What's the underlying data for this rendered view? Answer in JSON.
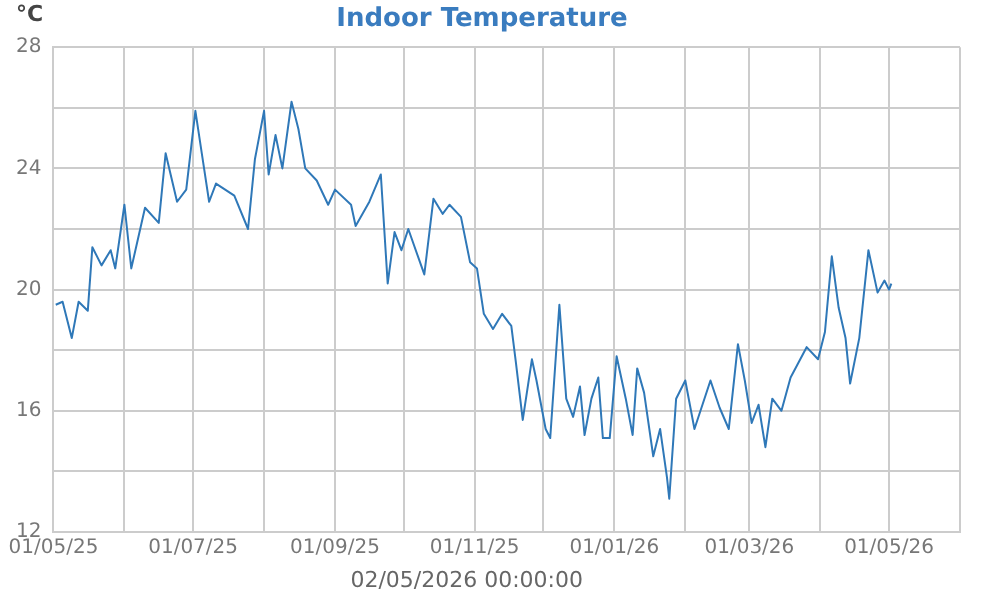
{
  "chart_data": {
    "type": "line",
    "title": "Indoor Temperature",
    "ylabel": "°C",
    "annotations": [
      "02/05/2026 00:00:00"
    ],
    "x": [
      "2025-05-02",
      "2025-05-05",
      "2025-05-09",
      "2025-05-12",
      "2025-05-16",
      "2025-05-18",
      "2025-05-22",
      "2025-05-26",
      "2025-05-28",
      "2025-06-01",
      "2025-06-04",
      "2025-06-10",
      "2025-06-16",
      "2025-06-19",
      "2025-06-24",
      "2025-06-28",
      "2025-07-02",
      "2025-07-05",
      "2025-07-08",
      "2025-07-11",
      "2025-07-19",
      "2025-07-25",
      "2025-07-28",
      "2025-08-01",
      "2025-08-03",
      "2025-08-06",
      "2025-08-09",
      "2025-08-13",
      "2025-08-16",
      "2025-08-19",
      "2025-08-24",
      "2025-08-29",
      "2025-09-01",
      "2025-09-08",
      "2025-09-10",
      "2025-09-16",
      "2025-09-21",
      "2025-09-24",
      "2025-09-27",
      "2025-09-30",
      "2025-10-03",
      "2025-10-10",
      "2025-10-14",
      "2025-10-18",
      "2025-10-21",
      "2025-10-26",
      "2025-10-30",
      "2025-11-02",
      "2025-11-05",
      "2025-11-09",
      "2025-11-13",
      "2025-11-17",
      "2025-11-19",
      "2025-11-22",
      "2025-11-26",
      "2025-11-28",
      "2025-12-02",
      "2025-12-04",
      "2025-12-08",
      "2025-12-11",
      "2025-12-14",
      "2025-12-17",
      "2025-12-19",
      "2025-12-22",
      "2025-12-25",
      "2025-12-27",
      "2025-12-30",
      "2026-01-02",
      "2026-01-06",
      "2026-01-09",
      "2026-01-11",
      "2026-01-14",
      "2026-01-18",
      "2026-01-21",
      "2026-01-24",
      "2026-01-25",
      "2026-01-28",
      "2026-02-01",
      "2026-02-05",
      "2026-02-12",
      "2026-02-16",
      "2026-02-20",
      "2026-02-24",
      "2026-02-27",
      "2026-03-02",
      "2026-03-05",
      "2026-03-08",
      "2026-03-11",
      "2026-03-15",
      "2026-03-19",
      "2026-03-26",
      "2026-03-31",
      "2026-04-03",
      "2026-04-06",
      "2026-04-09",
      "2026-04-12",
      "2026-04-14",
      "2026-04-18",
      "2026-04-22",
      "2026-04-26",
      "2026-04-29",
      "2026-05-01",
      "2026-05-02"
    ],
    "series": [
      {
        "color": "#2f78b8",
        "values": [
          19.5,
          19.6,
          18.4,
          19.6,
          19.3,
          21.4,
          20.8,
          21.3,
          20.7,
          22.8,
          20.7,
          22.7,
          22.2,
          24.5,
          22.9,
          23.3,
          25.9,
          24.4,
          22.9,
          23.5,
          23.1,
          22.0,
          24.3,
          25.9,
          23.8,
          25.1,
          24.0,
          26.2,
          25.3,
          24.0,
          23.6,
          22.8,
          23.3,
          22.8,
          22.1,
          22.9,
          23.8,
          20.2,
          21.9,
          21.3,
          22.0,
          20.5,
          23.0,
          22.5,
          22.8,
          22.4,
          20.9,
          20.7,
          19.2,
          18.7,
          19.2,
          18.8,
          17.6,
          15.7,
          17.7,
          17.0,
          15.4,
          15.1,
          19.5,
          16.4,
          15.8,
          16.8,
          15.2,
          16.4,
          17.1,
          15.1,
          15.1,
          17.8,
          16.4,
          15.2,
          17.4,
          16.6,
          14.5,
          15.4,
          13.8,
          13.1,
          16.4,
          17.0,
          15.4,
          17.0,
          16.1,
          15.4,
          18.2,
          17.0,
          15.6,
          16.2,
          14.8,
          16.4,
          16.0,
          17.1,
          18.1,
          17.7,
          18.6,
          21.1,
          19.4,
          18.4,
          16.9,
          18.4,
          21.3,
          19.9,
          20.3,
          20.0,
          20.2
        ]
      }
    ],
    "xlim": [
      "2025-05-01",
      "2026-06-01"
    ],
    "xticks": [
      {
        "value": "2025-05-01",
        "label": "01/05/25"
      },
      {
        "value": "2025-06-01",
        "label": null
      },
      {
        "value": "2025-07-01",
        "label": "01/07/25"
      },
      {
        "value": "2025-08-01",
        "label": null
      },
      {
        "value": "2025-09-01",
        "label": "01/09/25"
      },
      {
        "value": "2025-10-01",
        "label": null
      },
      {
        "value": "2025-11-01",
        "label": "01/11/25"
      },
      {
        "value": "2025-12-01",
        "label": null
      },
      {
        "value": "2026-01-01",
        "label": "01/01/26"
      },
      {
        "value": "2026-02-01",
        "label": null
      },
      {
        "value": "2026-03-01",
        "label": "01/03/26"
      },
      {
        "value": "2026-04-01",
        "label": null
      },
      {
        "value": "2026-05-01",
        "label": "01/05/26"
      },
      {
        "value": "2026-06-01",
        "label": null
      }
    ],
    "ylim": [
      12,
      28
    ],
    "yticks": [
      12,
      {
        "value": 14,
        "label": null
      },
      16,
      {
        "value": 18,
        "label": null
      },
      20,
      {
        "value": 22,
        "label": null
      },
      24,
      {
        "value": 26,
        "label": null
      },
      28
    ],
    "grid": true,
    "legend": false,
    "marker": "none",
    "line_style": "solid"
  }
}
